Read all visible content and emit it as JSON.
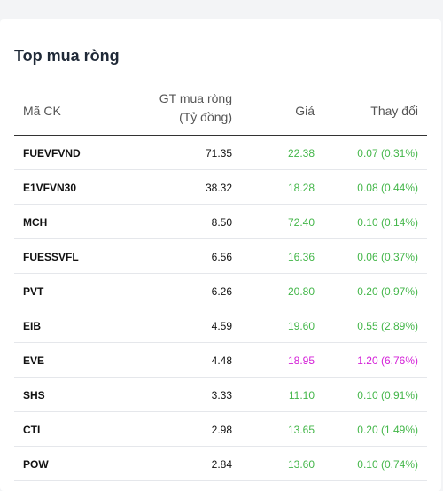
{
  "title": "Top mua ròng",
  "headers": {
    "code": "Mã CK",
    "gt_line1": "GT mua ròng",
    "gt_line2": "(Tỷ đồng)",
    "price": "Giá",
    "change": "Thay đổi"
  },
  "colors": {
    "up": "#43b649",
    "ceiling": "#d420d8"
  },
  "rows": [
    {
      "code": "FUEVFVND",
      "gt": "71.35",
      "price": "22.38",
      "change": "0.07 (0.31%)",
      "status": "up"
    },
    {
      "code": "E1VFVN30",
      "gt": "38.32",
      "price": "18.28",
      "change": "0.08 (0.44%)",
      "status": "up"
    },
    {
      "code": "MCH",
      "gt": "8.50",
      "price": "72.40",
      "change": "0.10 (0.14%)",
      "status": "up"
    },
    {
      "code": "FUESSVFL",
      "gt": "6.56",
      "price": "16.36",
      "change": "0.06 (0.37%)",
      "status": "up"
    },
    {
      "code": "PVT",
      "gt": "6.26",
      "price": "20.80",
      "change": "0.20 (0.97%)",
      "status": "up"
    },
    {
      "code": "EIB",
      "gt": "4.59",
      "price": "19.60",
      "change": "0.55 (2.89%)",
      "status": "up"
    },
    {
      "code": "EVE",
      "gt": "4.48",
      "price": "18.95",
      "change": "1.20 (6.76%)",
      "status": "ceiling"
    },
    {
      "code": "SHS",
      "gt": "3.33",
      "price": "11.10",
      "change": "0.10 (0.91%)",
      "status": "up"
    },
    {
      "code": "CTI",
      "gt": "2.98",
      "price": "13.65",
      "change": "0.20 (1.49%)",
      "status": "up"
    },
    {
      "code": "POW",
      "gt": "2.84",
      "price": "13.60",
      "change": "0.10 (0.74%)",
      "status": "up"
    }
  ]
}
